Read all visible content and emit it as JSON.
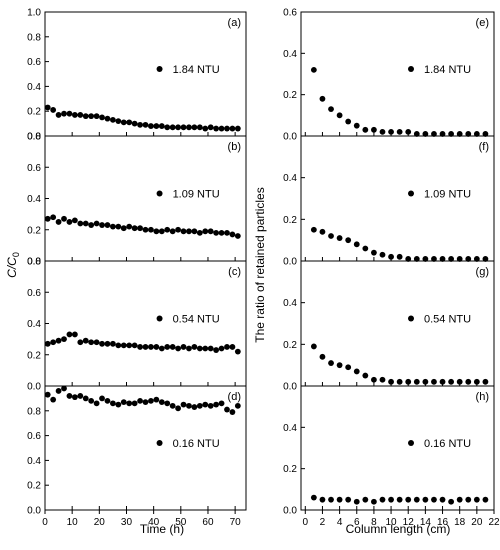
{
  "figure": {
    "left": {
      "xlabel": "Time (h)",
      "ylabel_main": "C/C",
      "ylabel_sub": "0",
      "xticks": [
        0,
        10,
        20,
        30,
        40,
        50,
        60,
        70
      ],
      "xlim": [
        0,
        74
      ]
    },
    "right": {
      "xlabel": "Column length (cm)",
      "ylabel": "The ratio of retained particles",
      "xticks": [
        0,
        2,
        4,
        6,
        8,
        10,
        12,
        14,
        16,
        18,
        20,
        22
      ],
      "xlim": [
        -0.5,
        22
      ]
    }
  },
  "chart_data": [
    {
      "type": "scatter",
      "panel": "(a)",
      "column": "left",
      "ylim": [
        0,
        1.0
      ],
      "yticks": [
        "0.0",
        "0.2",
        "0.4",
        "0.6",
        "0.8",
        "1.0"
      ],
      "series": [
        {
          "name": "1.84 NTU",
          "x": [
            1,
            3,
            5,
            7,
            9,
            11,
            13,
            15,
            17,
            19,
            21,
            23,
            25,
            27,
            29,
            31,
            33,
            35,
            37,
            39,
            41,
            43,
            45,
            47,
            49,
            51,
            53,
            55,
            57,
            59,
            61,
            63,
            65,
            67,
            69,
            71
          ],
          "y": [
            0.23,
            0.21,
            0.17,
            0.18,
            0.18,
            0.17,
            0.17,
            0.16,
            0.16,
            0.16,
            0.15,
            0.14,
            0.13,
            0.12,
            0.11,
            0.11,
            0.1,
            0.09,
            0.09,
            0.08,
            0.08,
            0.08,
            0.07,
            0.07,
            0.07,
            0.07,
            0.07,
            0.07,
            0.07,
            0.06,
            0.07,
            0.06,
            0.06,
            0.06,
            0.06,
            0.06
          ]
        }
      ]
    },
    {
      "type": "scatter",
      "panel": "(b)",
      "column": "left",
      "ylim": [
        0,
        0.8
      ],
      "yticks": [
        "0.0",
        "0.2",
        "0.4",
        "0.6",
        "0.8"
      ],
      "series": [
        {
          "name": "1.09 NTU",
          "x": [
            1,
            3,
            5,
            7,
            9,
            11,
            13,
            15,
            17,
            19,
            21,
            23,
            25,
            27,
            29,
            31,
            33,
            35,
            37,
            39,
            41,
            43,
            45,
            47,
            49,
            51,
            53,
            55,
            57,
            59,
            61,
            63,
            65,
            67,
            69,
            71
          ],
          "y": [
            0.27,
            0.28,
            0.25,
            0.27,
            0.25,
            0.26,
            0.24,
            0.24,
            0.23,
            0.24,
            0.23,
            0.23,
            0.22,
            0.22,
            0.21,
            0.22,
            0.21,
            0.21,
            0.2,
            0.2,
            0.19,
            0.19,
            0.2,
            0.19,
            0.2,
            0.19,
            0.19,
            0.19,
            0.18,
            0.19,
            0.19,
            0.18,
            0.18,
            0.18,
            0.17,
            0.16
          ]
        }
      ]
    },
    {
      "type": "scatter",
      "panel": "(c)",
      "column": "left",
      "ylim": [
        0,
        0.8
      ],
      "yticks": [
        "0.0",
        "0.2",
        "0.4",
        "0.6",
        "0.8"
      ],
      "series": [
        {
          "name": "0.54 NTU",
          "x": [
            1,
            3,
            5,
            7,
            9,
            11,
            13,
            15,
            17,
            19,
            21,
            23,
            25,
            27,
            29,
            31,
            33,
            35,
            37,
            39,
            41,
            43,
            45,
            47,
            49,
            51,
            53,
            55,
            57,
            59,
            61,
            63,
            65,
            67,
            69,
            71
          ],
          "y": [
            0.27,
            0.28,
            0.29,
            0.3,
            0.33,
            0.33,
            0.28,
            0.29,
            0.28,
            0.28,
            0.27,
            0.27,
            0.27,
            0.26,
            0.26,
            0.26,
            0.26,
            0.25,
            0.25,
            0.25,
            0.25,
            0.24,
            0.25,
            0.25,
            0.24,
            0.25,
            0.24,
            0.25,
            0.24,
            0.24,
            0.24,
            0.23,
            0.24,
            0.25,
            0.25,
            0.22
          ]
        }
      ]
    },
    {
      "type": "scatter",
      "panel": "(d)",
      "column": "left",
      "ylim": [
        0,
        1.0
      ],
      "yticks": [
        "0.0",
        "0.2",
        "0.4",
        "0.6",
        "0.8"
      ],
      "series": [
        {
          "name": "0.16 NTU",
          "x": [
            1,
            3,
            5,
            7,
            9,
            11,
            13,
            15,
            17,
            19,
            21,
            23,
            25,
            27,
            29,
            31,
            33,
            35,
            37,
            39,
            41,
            43,
            45,
            47,
            49,
            51,
            53,
            55,
            57,
            59,
            61,
            63,
            65,
            67,
            69,
            71
          ],
          "y": [
            0.93,
            0.89,
            0.96,
            0.98,
            0.92,
            0.91,
            0.92,
            0.9,
            0.88,
            0.86,
            0.9,
            0.88,
            0.86,
            0.85,
            0.87,
            0.86,
            0.86,
            0.88,
            0.87,
            0.88,
            0.89,
            0.87,
            0.86,
            0.84,
            0.82,
            0.85,
            0.84,
            0.83,
            0.84,
            0.85,
            0.84,
            0.85,
            0.86,
            0.81,
            0.79,
            0.84
          ]
        }
      ]
    },
    {
      "type": "scatter",
      "panel": "(e)",
      "column": "right",
      "ylim": [
        0,
        0.6
      ],
      "yticks": [
        "0.0",
        "0.2",
        "0.4",
        "0.6"
      ],
      "series": [
        {
          "name": "1.84 NTU",
          "x": [
            1,
            2,
            3,
            4,
            5,
            6,
            7,
            8,
            9,
            10,
            11,
            12,
            13,
            14,
            15,
            16,
            17,
            18,
            19,
            20,
            21
          ],
          "y": [
            0.32,
            0.18,
            0.13,
            0.1,
            0.07,
            0.05,
            0.03,
            0.03,
            0.02,
            0.02,
            0.02,
            0.02,
            0.01,
            0.01,
            0.01,
            0.01,
            0.01,
            0.01,
            0.01,
            0.01,
            0.01
          ]
        }
      ]
    },
    {
      "type": "scatter",
      "panel": "(f)",
      "column": "right",
      "ylim": [
        0,
        0.6
      ],
      "yticks": [
        "0.0",
        "0.2",
        "0.4"
      ],
      "series": [
        {
          "name": "1.09 NTU",
          "x": [
            1,
            2,
            3,
            4,
            5,
            6,
            7,
            8,
            9,
            10,
            11,
            12,
            13,
            14,
            15,
            16,
            17,
            18,
            19,
            20,
            21
          ],
          "y": [
            0.15,
            0.14,
            0.12,
            0.11,
            0.1,
            0.08,
            0.06,
            0.04,
            0.03,
            0.02,
            0.02,
            0.01,
            0.01,
            0.01,
            0.01,
            0.01,
            0.01,
            0.01,
            0.01,
            0.01,
            0.01
          ]
        }
      ]
    },
    {
      "type": "scatter",
      "panel": "(g)",
      "column": "right",
      "ylim": [
        0,
        0.6
      ],
      "yticks": [
        "0.0",
        "0.2",
        "0.4"
      ],
      "series": [
        {
          "name": "0.54 NTU",
          "x": [
            1,
            2,
            3,
            4,
            5,
            6,
            7,
            8,
            9,
            10,
            11,
            12,
            13,
            14,
            15,
            16,
            17,
            18,
            19,
            20,
            21
          ],
          "y": [
            0.19,
            0.14,
            0.11,
            0.1,
            0.09,
            0.07,
            0.05,
            0.03,
            0.03,
            0.02,
            0.02,
            0.02,
            0.02,
            0.02,
            0.02,
            0.02,
            0.02,
            0.02,
            0.02,
            0.02,
            0.02
          ]
        }
      ]
    },
    {
      "type": "scatter",
      "panel": "(h)",
      "column": "right",
      "ylim": [
        0,
        0.6
      ],
      "yticks": [
        "0.0",
        "0.2",
        "0.4"
      ],
      "series": [
        {
          "name": "0.16 NTU",
          "x": [
            1,
            2,
            3,
            4,
            5,
            6,
            7,
            8,
            9,
            10,
            11,
            12,
            13,
            14,
            15,
            16,
            17,
            18,
            19,
            20,
            21
          ],
          "y": [
            0.06,
            0.05,
            0.05,
            0.05,
            0.05,
            0.04,
            0.05,
            0.04,
            0.05,
            0.05,
            0.05,
            0.05,
            0.05,
            0.05,
            0.05,
            0.05,
            0.04,
            0.05,
            0.05,
            0.05,
            0.05
          ]
        }
      ]
    }
  ]
}
